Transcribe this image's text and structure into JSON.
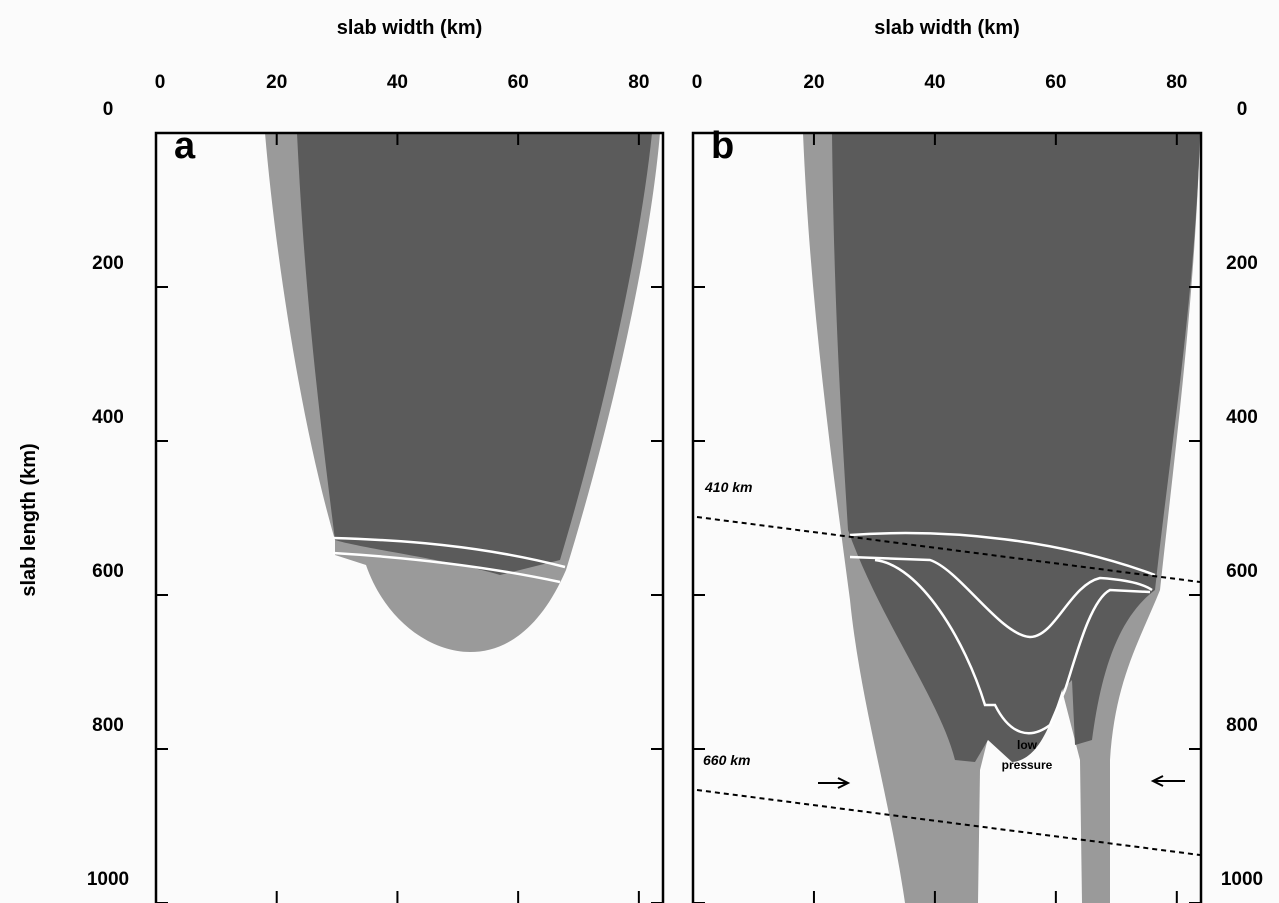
{
  "panels": [
    {
      "label": "a",
      "x_axis_label": "slab width (km)",
      "y_axis_label": "slab length (km)",
      "xlim": [
        0,
        84
      ],
      "ylim": [
        0,
        1000
      ],
      "xticks": [
        0,
        20,
        40,
        60,
        80
      ],
      "yticks": [
        0,
        200,
        400,
        600,
        800,
        1000
      ]
    },
    {
      "label": "b",
      "x_axis_label": "slab width (km)",
      "xlim": [
        0,
        84
      ],
      "ylim": [
        0,
        1000
      ],
      "xticks": [
        0,
        20,
        40,
        60,
        80
      ],
      "yticks": [
        0,
        200,
        400,
        600,
        800,
        1000
      ],
      "annotations": [
        "410 km",
        "660 km",
        "low pressure"
      ]
    }
  ]
}
